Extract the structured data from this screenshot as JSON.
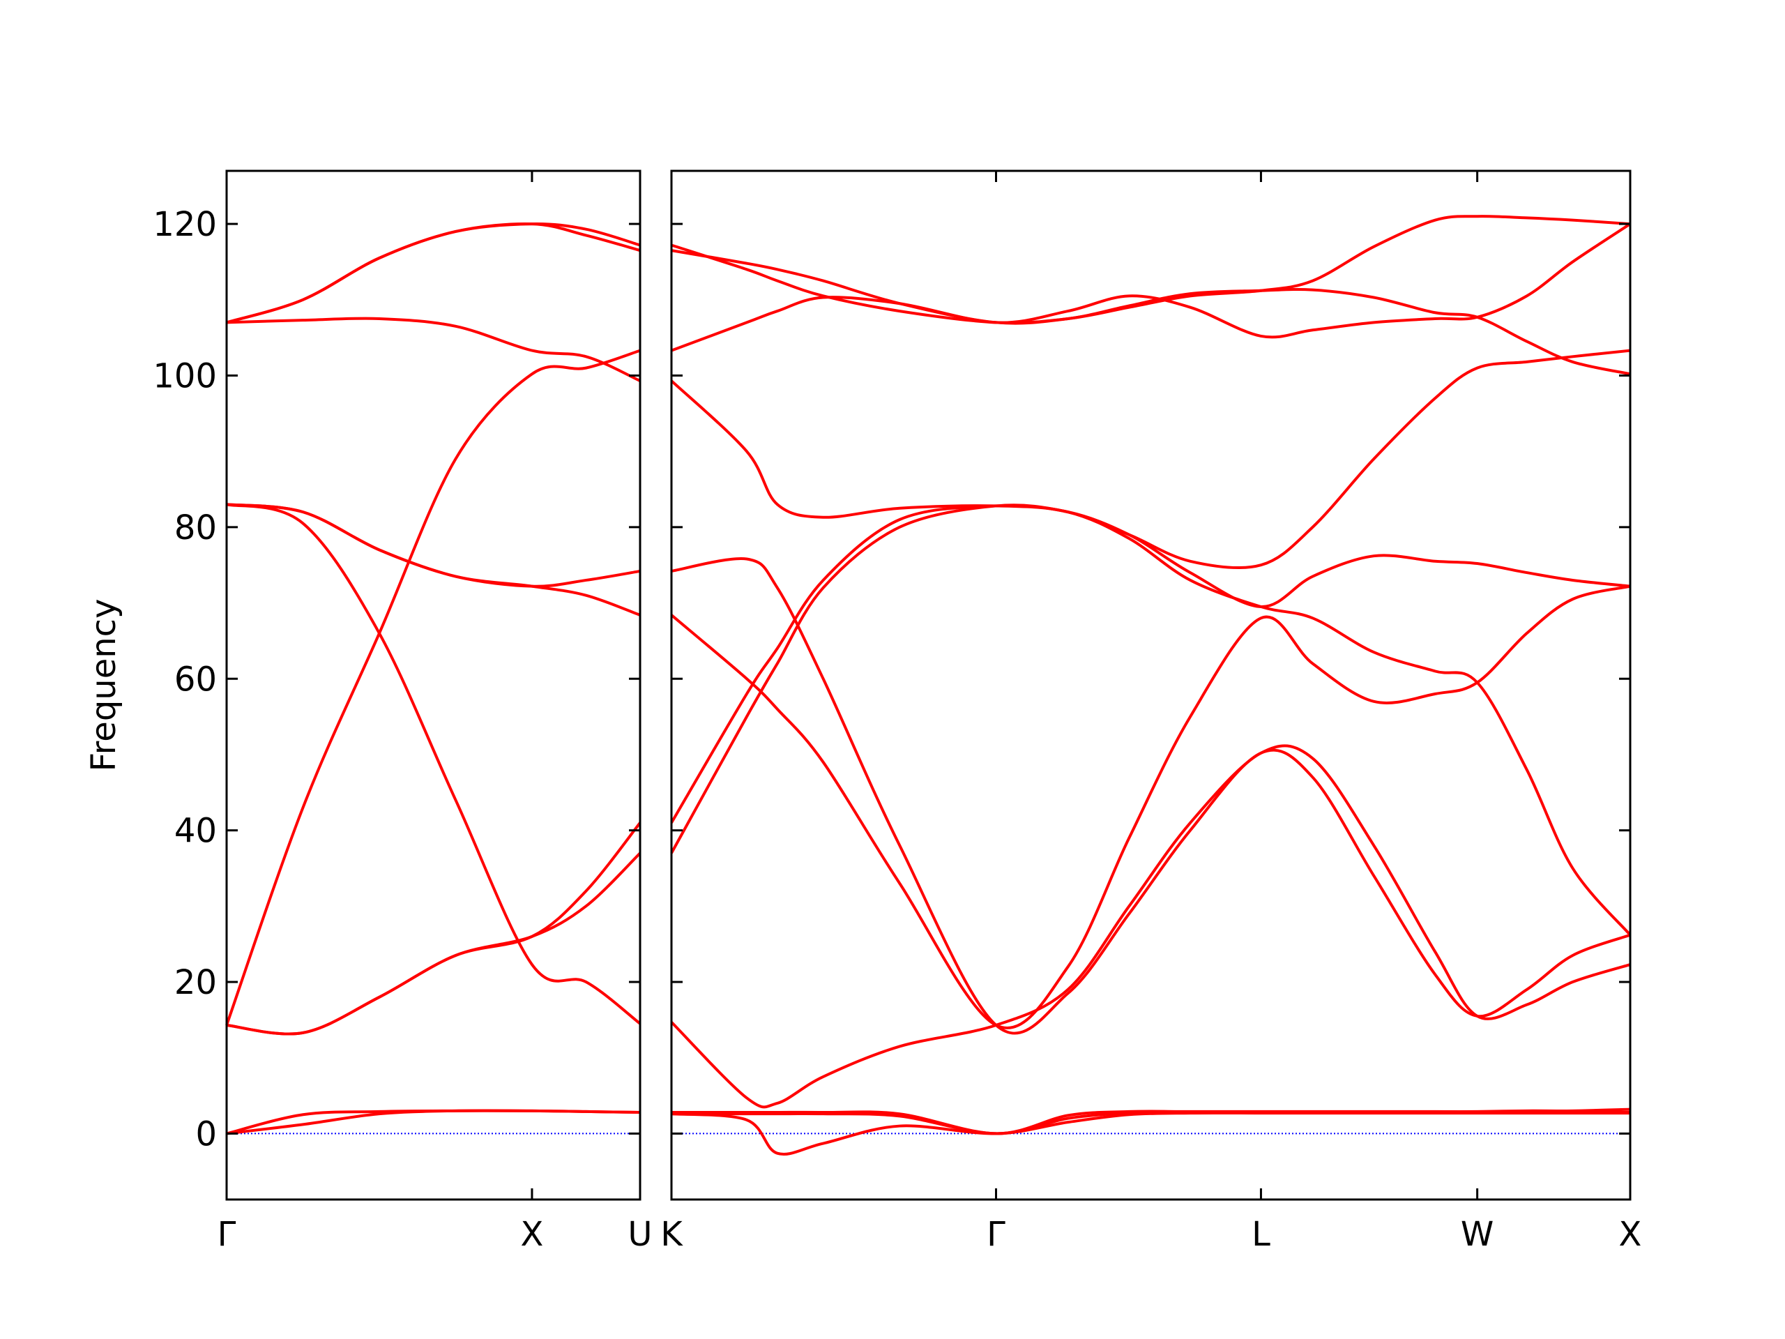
{
  "chart_data": [
    {
      "type": "line",
      "ylabel": "Frequency",
      "ytick_labels": true,
      "zero_line": 0,
      "zero_color": "#0000ff",
      "xlim": [
        0,
        1.354
      ],
      "xticks": [
        {
          "value": 0,
          "label": "Γ"
        },
        {
          "value": 1,
          "label": "X"
        },
        {
          "value": 1.354,
          "label": "U"
        }
      ],
      "ylim": [
        -8.7,
        127
      ],
      "yticks": [
        0,
        20,
        40,
        60,
        80,
        100,
        120
      ],
      "x": [
        0,
        0.25,
        0.5,
        0.75,
        1,
        1.177,
        1.354
      ],
      "series": [
        {
          "color": "#ff0000",
          "values": [
            0,
            2.5,
            2.9,
            3,
            3,
            2.9,
            2.8
          ]
        },
        {
          "color": "#ff0000",
          "values": [
            0,
            1.2,
            2.6,
            3,
            3,
            2.9,
            2.8
          ]
        },
        {
          "color": "#ff0000",
          "values": [
            14.3,
            13.3,
            18,
            23.5,
            26,
            30,
            37
          ]
        },
        {
          "color": "#ff0000",
          "values": [
            14.3,
            13.3,
            18,
            23.5,
            26,
            32,
            41
          ]
        },
        {
          "color": "#ff0000",
          "values": [
            83,
            80.5,
            66,
            44,
            22.3,
            20,
            14.5
          ]
        },
        {
          "color": "#ff0000",
          "values": [
            14.3,
            43,
            66,
            89,
            100.2,
            101,
            103.3
          ]
        },
        {
          "color": "#ff0000",
          "values": [
            83,
            82,
            77,
            73.5,
            72.2,
            73,
            74.2
          ]
        },
        {
          "color": "#ff0000",
          "values": [
            83,
            82,
            77,
            73.5,
            72.2,
            71,
            68.4
          ]
        },
        {
          "color": "#ff0000",
          "values": [
            107,
            107.3,
            107.5,
            106.5,
            103.3,
            102.5,
            99.3
          ]
        },
        {
          "color": "#ff0000",
          "values": [
            107,
            110,
            115.5,
            119,
            120,
            119.3,
            117.2
          ]
        },
        {
          "color": "#ff0000",
          "values": [
            107,
            110,
            115.5,
            119,
            120,
            118.5,
            116.5
          ]
        }
      ]
    },
    {
      "type": "line",
      "ytick_labels": false,
      "zero_line": 0,
      "zero_color": "#0000ff",
      "xlim": [
        1.354,
        4.488
      ],
      "xticks": [
        {
          "value": 1.354,
          "label": "K"
        },
        {
          "value": 2.415,
          "label": "Γ"
        },
        {
          "value": 3.281,
          "label": "L"
        },
        {
          "value": 3.988,
          "label": "W"
        },
        {
          "value": 4.488,
          "label": "X"
        }
      ],
      "ylim": [
        -8.7,
        127
      ],
      "yticks": [
        0,
        20,
        40,
        60,
        80,
        100,
        120
      ],
      "x": [
        1.354,
        1.6,
        1.7,
        1.85,
        2.1,
        2.415,
        2.65,
        2.85,
        3.05,
        3.281,
        3.45,
        3.65,
        3.85,
        3.988,
        4.15,
        4.3,
        4.488
      ],
      "series": [
        {
          "color": "#ff0000",
          "values": [
            2.8,
            2.8,
            2.8,
            2.8,
            2.6,
            0,
            2.4,
            2.9,
            2.9,
            2.9,
            2.9,
            2.9,
            2.9,
            2.9,
            3,
            3,
            3.2
          ]
        },
        {
          "color": "#ff0000",
          "values": [
            2.6,
            2.6,
            2.6,
            2.6,
            2.3,
            0,
            2.0,
            2.7,
            2.8,
            2.8,
            2.8,
            2.8,
            2.8,
            2.8,
            2.8,
            2.8,
            2.8
          ]
        },
        {
          "color": "#ff0000",
          "values": [
            2.6,
            1.8,
            -2.6,
            -1.3,
            1.0,
            0,
            1.5,
            2.5,
            2.7,
            2.7,
            2.7,
            2.7,
            2.7,
            2.7,
            2.7,
            2.7,
            2.7
          ]
        },
        {
          "color": "#ff0000",
          "values": [
            14.7,
            4.7,
            4.0,
            7.5,
            11.5,
            14.3,
            19,
            30,
            41,
            50.2,
            49.5,
            38,
            24,
            15.5,
            17,
            20,
            22.3
          ]
        },
        {
          "color": "#ff0000",
          "values": [
            74.2,
            75.8,
            72,
            60,
            38,
            14.3,
            18.5,
            29,
            40,
            50.2,
            47,
            34,
            21,
            15.5,
            19,
            23.5,
            26.2
          ]
        },
        {
          "color": "#ff0000",
          "values": [
            68.4,
            60,
            56,
            49,
            33,
            14.3,
            22,
            39,
            55,
            68,
            62,
            57,
            58,
            59.5,
            66,
            70.5,
            72.2
          ]
        },
        {
          "color": "#ff0000",
          "values": [
            37,
            55,
            62,
            72,
            80,
            82.8,
            82,
            79,
            75.5,
            75,
            80,
            89,
            97,
            101,
            101.8,
            102.5,
            103.3
          ]
        },
        {
          "color": "#ff0000",
          "values": [
            41,
            58,
            64,
            73,
            81,
            82.8,
            82,
            79,
            74,
            69.5,
            73.5,
            76.2,
            75.5,
            75.2,
            74,
            73,
            72.2
          ]
        },
        {
          "color": "#ff0000",
          "values": [
            99.3,
            90,
            83,
            81.3,
            82.5,
            82.8,
            82,
            78.5,
            73,
            69.5,
            68,
            63.5,
            61,
            59.5,
            48,
            35,
            26.2
          ]
        },
        {
          "color": "#ff0000",
          "values": [
            103.3,
            107,
            108.5,
            110.3,
            109.5,
            107,
            108.5,
            110.5,
            109,
            105.2,
            106,
            107,
            107.5,
            107.7,
            110.5,
            115,
            120
          ]
        },
        {
          "color": "#ff0000",
          "values": [
            117.2,
            114,
            112.5,
            110.5,
            108.5,
            107,
            107.5,
            109,
            110.5,
            111.2,
            112.5,
            117,
            120.5,
            121,
            120.8,
            120.5,
            120
          ]
        },
        {
          "color": "#ff0000",
          "values": [
            116.5,
            114.8,
            114,
            112.5,
            109.5,
            107,
            107.5,
            109.2,
            110.8,
            111.2,
            111.3,
            110.3,
            108.3,
            107.7,
            104.5,
            101.8,
            100.2
          ]
        }
      ]
    }
  ]
}
